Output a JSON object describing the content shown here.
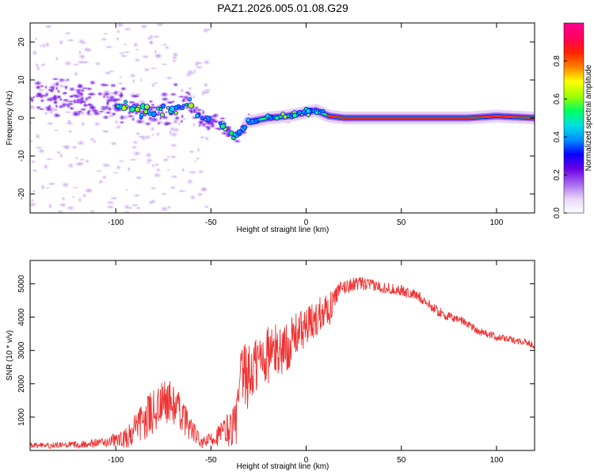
{
  "title": "PAZ1.2026.005.01.08.G29",
  "chart_data": [
    {
      "type": "heatmap",
      "xlabel": "Height of straight line (km)",
      "ylabel": "Frequency (Hz)",
      "xlim": [
        -145,
        120
      ],
      "ylim": [
        -25,
        25
      ],
      "x_ticks": [
        -100,
        -50,
        0,
        50,
        100
      ],
      "y_ticks": [
        -20,
        -10,
        0,
        10,
        20
      ],
      "colorbar": {
        "label": "Normalized spectral amplitude",
        "range": [
          0,
          1
        ],
        "ticks": [
          "0.0",
          "0.2",
          "0.4",
          "0.6",
          "0.8"
        ],
        "colors": [
          "#ffffff",
          "#e6d3f7",
          "#a766ee",
          "#6a00e6",
          "#0a00ff",
          "#0090ff",
          "#00e0e0",
          "#00ff60",
          "#a0ff00",
          "#ffff00",
          "#ff8000",
          "#ff2000",
          "#ff0060",
          "#ff0090"
        ]
      },
      "ridge": [
        {
          "x": -125,
          "f": 5
        },
        {
          "x": -110,
          "f": 4
        },
        {
          "x": -90,
          "f": 2.5
        },
        {
          "x": -75,
          "f": 1.5
        },
        {
          "x": -62,
          "f": 4
        },
        {
          "x": -55,
          "f": 0
        },
        {
          "x": -45,
          "f": -1.5
        },
        {
          "x": -37,
          "f": -5
        },
        {
          "x": -30,
          "f": -1
        },
        {
          "x": -20,
          "f": 0
        },
        {
          "x": -10,
          "f": 0.5
        },
        {
          "x": 0,
          "f": 1.5
        },
        {
          "x": 5,
          "f": 2
        },
        {
          "x": 12,
          "f": 0.5
        },
        {
          "x": 20,
          "f": 0
        },
        {
          "x": 50,
          "f": 0
        },
        {
          "x": 85,
          "f": 0
        },
        {
          "x": 100,
          "f": 0.5
        },
        {
          "x": 120,
          "f": 0
        }
      ]
    },
    {
      "type": "line",
      "xlabel": "Height of straight line (km)",
      "ylabel": "SNR (10 * v/v)",
      "xlim": [
        -145,
        120
      ],
      "ylim": [
        0,
        5700
      ],
      "x_ticks": [
        -100,
        -50,
        0,
        50,
        100
      ],
      "y_ticks": [
        1000,
        2000,
        3000,
        4000,
        5000
      ],
      "color": "#ee3333",
      "series": [
        {
          "name": "SNR",
          "x": [
            -145,
            -130,
            -115,
            -105,
            -95,
            -88,
            -80,
            -73,
            -68,
            -62,
            -55,
            -48,
            -42,
            -37,
            -34,
            -30,
            -25,
            -20,
            -15,
            -10,
            -5,
            0,
            5,
            9,
            12,
            16,
            20,
            25,
            30,
            35,
            40,
            45,
            50,
            55,
            60,
            65,
            70,
            75,
            80,
            85,
            90,
            95,
            100,
            105,
            110,
            115,
            120
          ],
          "values": [
            150,
            150,
            200,
            250,
            350,
            700,
            1200,
            1500,
            1300,
            800,
            200,
            400,
            600,
            800,
            2200,
            2200,
            2700,
            2900,
            3000,
            3100,
            3500,
            3700,
            3900,
            4300,
            4200,
            4700,
            4900,
            5000,
            5000,
            4950,
            4900,
            4850,
            4800,
            4700,
            4600,
            4350,
            4150,
            4000,
            3950,
            3800,
            3600,
            3500,
            3400,
            3350,
            3300,
            3250,
            3150
          ],
          "spread": [
            80,
            90,
            120,
            150,
            300,
            550,
            700,
            700,
            600,
            450,
            150,
            250,
            500,
            700,
            1000,
            1000,
            950,
            900,
            800,
            750,
            650,
            600,
            600,
            550,
            500,
            300,
            250,
            200,
            200,
            180,
            180,
            170,
            170,
            160,
            160,
            150,
            150,
            150,
            140,
            130,
            130,
            120,
            110,
            100,
            100,
            100,
            100
          ]
        }
      ]
    }
  ]
}
